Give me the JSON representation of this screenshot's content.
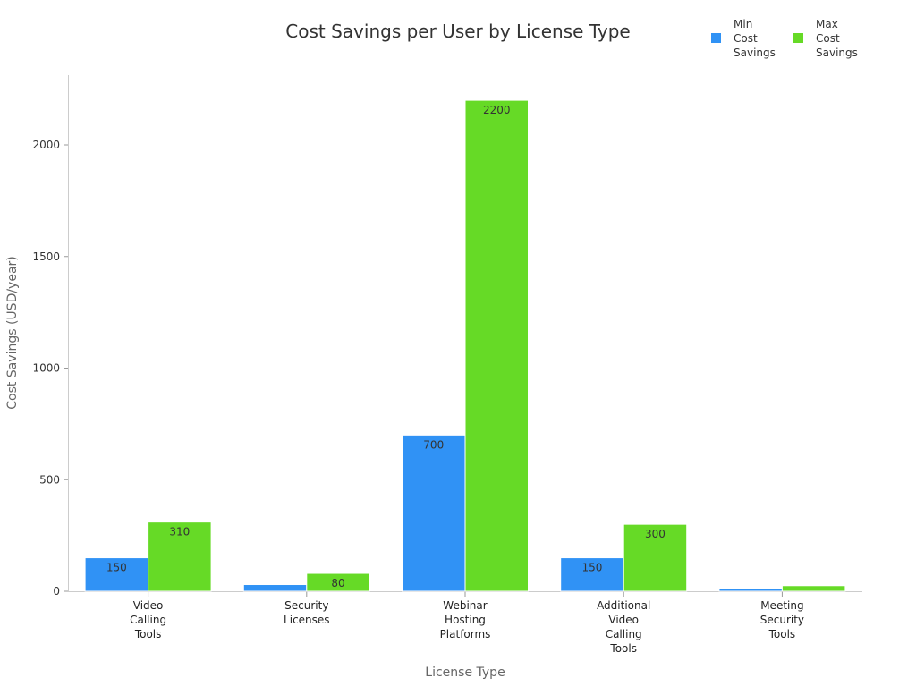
{
  "chart_data": {
    "type": "bar",
    "title": "Cost Savings per User by License Type",
    "xlabel": "License Type",
    "ylabel": "Cost Savings (USD/year)",
    "categories": [
      [
        "Video",
        "Calling",
        "Tools"
      ],
      [
        "Security",
        "Licenses"
      ],
      [
        "Webinar",
        "Hosting",
        "Platforms"
      ],
      [
        "Additional",
        "Video",
        "Calling",
        "Tools"
      ],
      [
        "Meeting",
        "Security",
        "Tools"
      ]
    ],
    "series": [
      {
        "name": "Min Cost Savings",
        "legend_lines": [
          "Min",
          "Cost",
          "Savings"
        ],
        "color": "#3092f5",
        "values": [
          150,
          30,
          700,
          150,
          10
        ],
        "labels": [
          "150",
          "",
          "700",
          "150",
          ""
        ]
      },
      {
        "name": "Max Cost Savings",
        "legend_lines": [
          "Max",
          "Cost",
          "Savings"
        ],
        "color": "#66da26",
        "values": [
          310,
          80,
          2200,
          300,
          25
        ],
        "labels": [
          "310",
          "80",
          "2200",
          "300",
          ""
        ]
      }
    ],
    "ylim": [
      0,
      2310
    ],
    "yticks": [
      0,
      500,
      1000,
      1500,
      2000
    ],
    "grid": false,
    "legend": "top-right"
  }
}
